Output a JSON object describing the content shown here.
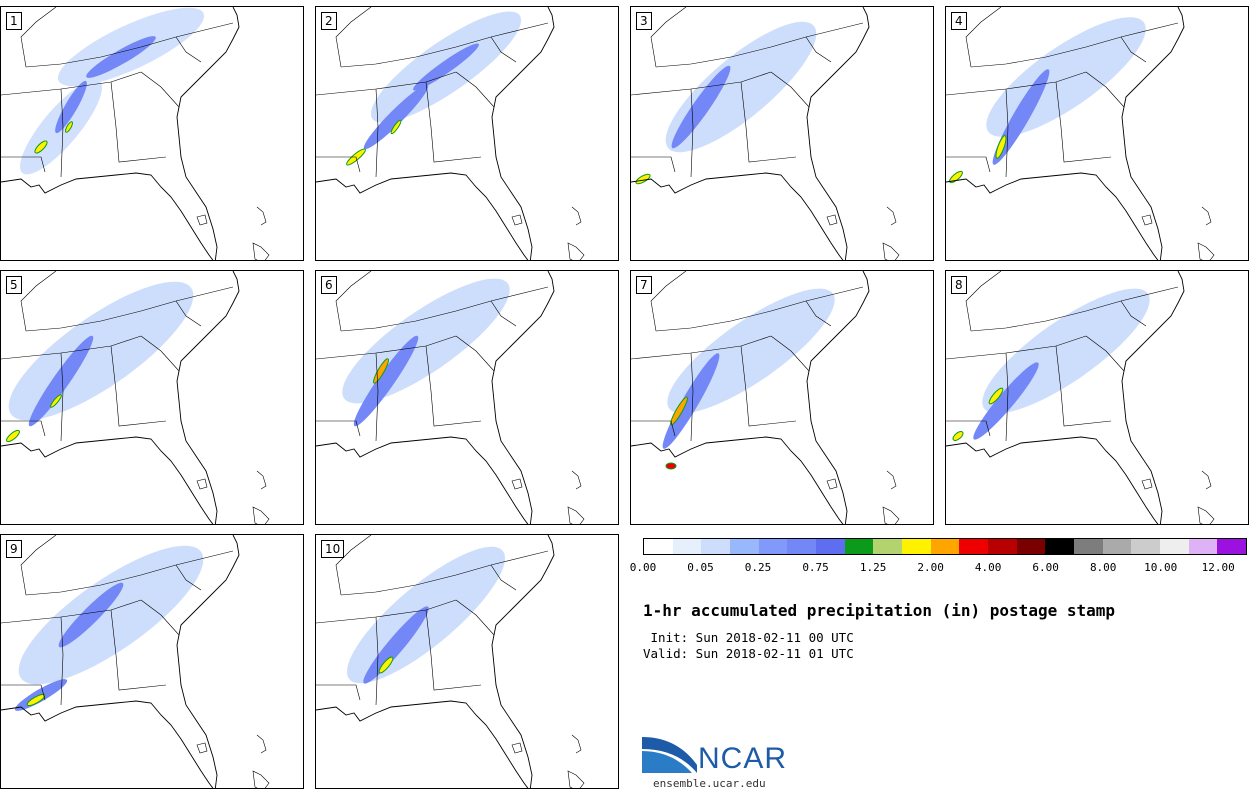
{
  "panels": [
    {
      "label": "1"
    },
    {
      "label": "2"
    },
    {
      "label": "3"
    },
    {
      "label": "4"
    },
    {
      "label": "5"
    },
    {
      "label": "6"
    },
    {
      "label": "7"
    },
    {
      "label": "8"
    },
    {
      "label": "9"
    },
    {
      "label": "10"
    }
  ],
  "colorbar": {
    "colors": [
      "#ffffff",
      "#e6f0fc",
      "#cdddfc",
      "#99b7fb",
      "#8099fa",
      "#7388f6",
      "#5f6ef0",
      "#0c9a1a",
      "#b3d36f",
      "#fff200",
      "#ffa500",
      "#ee0000",
      "#b80000",
      "#7a0000",
      "#000000",
      "#7d7d7d",
      "#aaaaaa",
      "#cccccc",
      "#eeeeee",
      "#dfb1f5",
      "#9b11e0"
    ],
    "tick_labels": [
      "0.00",
      "0.05",
      "0.25",
      "0.75",
      "1.25",
      "2.00",
      "4.00",
      "6.00",
      "8.00",
      "10.00",
      "12.00"
    ]
  },
  "title": "1-hr accumulated precipitation (in) postage stamp",
  "init": " Init: Sun 2018-02-11 00 UTC",
  "valid": "Valid: Sun 2018-02-11 01 UTC",
  "logo": {
    "name": "NCAR",
    "site": "ensemble.ucar.edu",
    "color": "#1d5aa8"
  }
}
